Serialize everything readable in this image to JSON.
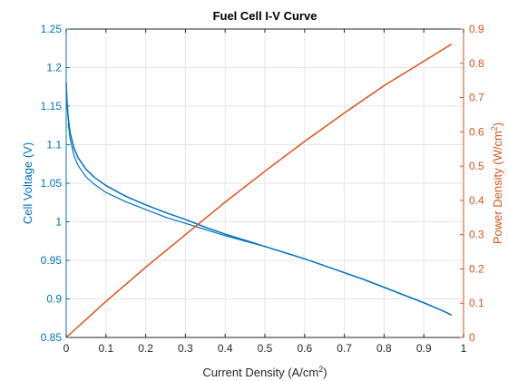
{
  "chart_data": {
    "type": "line",
    "title": "Fuel Cell I-V Curve",
    "xlabel": {
      "text": "Current Density (A/cm",
      "sup": "2",
      "tail": ")"
    },
    "ylabel_left": "Cell Voltage (V)",
    "ylabel_right": {
      "text": "Power Density (W/cm",
      "sup": "2",
      "tail": ")"
    },
    "xlim": [
      0,
      1
    ],
    "ylim_left": [
      0.85,
      1.25
    ],
    "ylim_right": [
      0,
      0.9
    ],
    "grid": true,
    "x_ticks": [
      "0",
      "0.1",
      "0.2",
      "0.3",
      "0.4",
      "0.5",
      "0.6",
      "0.7",
      "0.8",
      "0.9",
      "1"
    ],
    "y_left_ticks": [
      "0.85",
      "0.9",
      "0.95",
      "1",
      "1.05",
      "1.1",
      "1.15",
      "1.2",
      "1.25"
    ],
    "y_right_ticks": [
      "0",
      "0.1",
      "0.2",
      "0.3",
      "0.4",
      "0.5",
      "0.6",
      "0.7",
      "0.8",
      "0.9"
    ],
    "colors": {
      "voltage": "#0072BD",
      "power": "#D95319",
      "grid": "#e6e6e6",
      "axis": "#262626"
    },
    "series": [
      {
        "axis": "left",
        "color": "#0072BD",
        "x": [
          0,
          0.002,
          0.005,
          0.01,
          0.02,
          0.03,
          0.05,
          0.07,
          0.1,
          0.15,
          0.2,
          0.25,
          0.3,
          0.35,
          0.4,
          0.45,
          0.5,
          0.55,
          0.6,
          0.65,
          0.7,
          0.75,
          0.8,
          0.85,
          0.9,
          0.95,
          0.97
        ],
        "values": [
          1.18,
          1.155,
          1.135,
          1.115,
          1.095,
          1.083,
          1.068,
          1.058,
          1.047,
          1.033,
          1.022,
          1.012,
          1.003,
          0.993,
          0.984,
          0.976,
          0.968,
          0.96,
          0.952,
          0.943,
          0.934,
          0.925,
          0.915,
          0.905,
          0.895,
          0.884,
          0.879
        ]
      },
      {
        "axis": "left",
        "color": "#0072BD",
        "x": [
          0.005,
          0.01,
          0.02,
          0.03,
          0.05,
          0.07,
          0.1,
          0.15,
          0.2,
          0.25,
          0.3,
          0.35,
          0.4,
          0.45,
          0.5
        ],
        "values": [
          1.128,
          1.107,
          1.085,
          1.073,
          1.058,
          1.049,
          1.038,
          1.026,
          1.016,
          1.006,
          0.998,
          0.99,
          0.982,
          0.975,
          0.968
        ]
      },
      {
        "axis": "right",
        "color": "#D95319",
        "x": [
          0,
          0.1,
          0.2,
          0.3,
          0.4,
          0.5,
          0.6,
          0.7,
          0.8,
          0.9,
          0.97
        ],
        "values": [
          0,
          0.105,
          0.205,
          0.3,
          0.395,
          0.485,
          0.572,
          0.655,
          0.735,
          0.806,
          0.856
        ]
      }
    ]
  }
}
